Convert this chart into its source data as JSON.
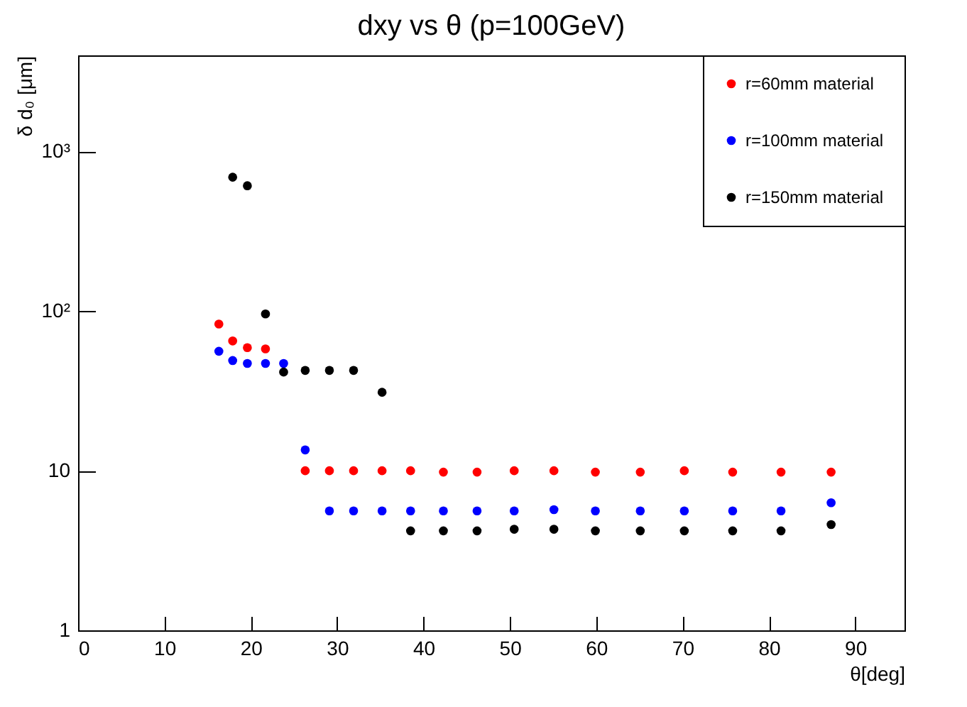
{
  "chart_data": {
    "type": "scatter",
    "title": "dxy vs θ (p=100GeV)",
    "xlabel": "θ[deg]",
    "ylabel": "δ d₀ [μm]",
    "xlim": [
      0,
      95.7
    ],
    "xticks": [
      0,
      10,
      20,
      30,
      40,
      50,
      60,
      70,
      80,
      90
    ],
    "ylim": [
      1,
      4000
    ],
    "yticks": [
      1,
      10,
      {
        "value": 100,
        "label": "10²"
      },
      {
        "value": 1000,
        "label": "10³"
      }
    ],
    "log": "y",
    "marker": "circle",
    "legend": "top right",
    "grid": false,
    "series": [
      {
        "name": "r=60mm material",
        "color": "#ff0000",
        "x": [
          16.3,
          17.9,
          19.6,
          21.7,
          26.3,
          29.1,
          31.9,
          35.2,
          38.5,
          42.3,
          46.2,
          50.5,
          55.1,
          59.9,
          65.1,
          70.2,
          75.8,
          81.4,
          87.2
        ],
        "values": [
          83,
          65,
          59,
          58,
          10,
          10,
          10,
          10,
          10,
          9.8,
          9.8,
          10,
          10,
          9.8,
          9.8,
          10,
          9.8,
          9.8,
          9.8
        ]
      },
      {
        "name": "r=100mm material",
        "color": "#0000ff",
        "x": [
          16.3,
          17.9,
          19.6,
          21.7,
          23.8,
          26.3,
          29.1,
          31.9,
          35.2,
          38.5,
          42.3,
          46.2,
          50.5,
          55.1,
          59.9,
          65.1,
          70.2,
          75.8,
          81.4,
          87.2
        ],
        "values": [
          56,
          49,
          47,
          47,
          47,
          13.5,
          5.6,
          5.6,
          5.6,
          5.6,
          5.6,
          5.6,
          5.6,
          5.7,
          5.6,
          5.6,
          5.6,
          5.6,
          5.6,
          6.3
        ]
      },
      {
        "name": "r=150mm material",
        "color": "#000000",
        "x": [
          17.9,
          19.6,
          21.7,
          23.8,
          26.3,
          29.1,
          31.9,
          35.2,
          38.5,
          42.3,
          46.2,
          50.5,
          55.1,
          59.9,
          65.1,
          70.2,
          75.8,
          81.4,
          87.2
        ],
        "values": [
          690,
          610,
          96,
          41.5,
          42.5,
          42.5,
          42.5,
          31,
          4.2,
          4.2,
          4.2,
          4.3,
          4.3,
          4.2,
          4.2,
          4.2,
          4.2,
          4.2,
          4.6
        ]
      }
    ]
  }
}
